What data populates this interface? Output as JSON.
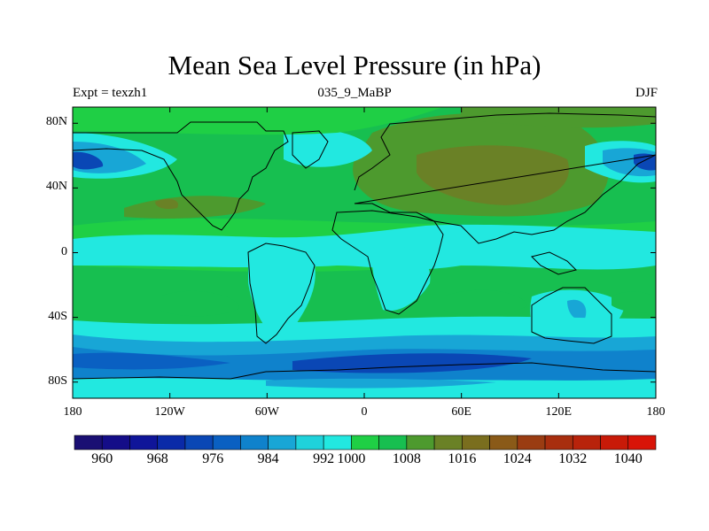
{
  "title": "Mean Sea Level Pressure (in hPa)",
  "experiment_label": "Expt = texzh1",
  "period_label": "035_9_MaBP",
  "season_label": "DJF",
  "map": {
    "projection": "cylindrical equidistant",
    "lon_range": [
      -180,
      180
    ],
    "lat_range": [
      -90,
      90
    ],
    "y_ticks": [
      {
        "lat": 80,
        "label": "80N"
      },
      {
        "lat": 40,
        "label": "40N"
      },
      {
        "lat": 0,
        "label": "0"
      },
      {
        "lat": -40,
        "label": "40S"
      },
      {
        "lat": -80,
        "label": "80S"
      }
    ],
    "x_ticks": [
      {
        "lon": -180,
        "label": "180"
      },
      {
        "lon": -120,
        "label": "120W"
      },
      {
        "lon": -60,
        "label": "60W"
      },
      {
        "lon": 0,
        "label": "0"
      },
      {
        "lon": 60,
        "label": "60E"
      },
      {
        "lon": 120,
        "label": "120E"
      },
      {
        "lon": 180,
        "label": "180"
      }
    ]
  },
  "colorbar": {
    "colors": [
      "#1a0f73",
      "#140d88",
      "#0f1599",
      "#0a2aa8",
      "#0a47b5",
      "#0a60c2",
      "#0f82cc",
      "#18a6d6",
      "#1fd2db",
      "#22e8e0",
      "#1fcf45",
      "#17bf50",
      "#4d9a2e",
      "#6a8126",
      "#7a6e1e",
      "#8a5a18",
      "#9a3c12",
      "#a82e0e",
      "#b8230b",
      "#c81a08",
      "#d81408"
    ],
    "labels": [
      {
        "after_index": 1,
        "text": "960"
      },
      {
        "after_index": 3,
        "text": "968"
      },
      {
        "after_index": 5,
        "text": "976"
      },
      {
        "after_index": 7,
        "text": "984"
      },
      {
        "after_index": 9,
        "text": "992"
      },
      {
        "after_index": 10,
        "text": "1000"
      },
      {
        "after_index": 12,
        "text": "1008"
      },
      {
        "after_index": 14,
        "text": "1016"
      },
      {
        "after_index": 16,
        "text": "1024"
      },
      {
        "after_index": 18,
        "text": "1032"
      },
      {
        "after_index": 20,
        "text": "1040"
      }
    ]
  }
}
